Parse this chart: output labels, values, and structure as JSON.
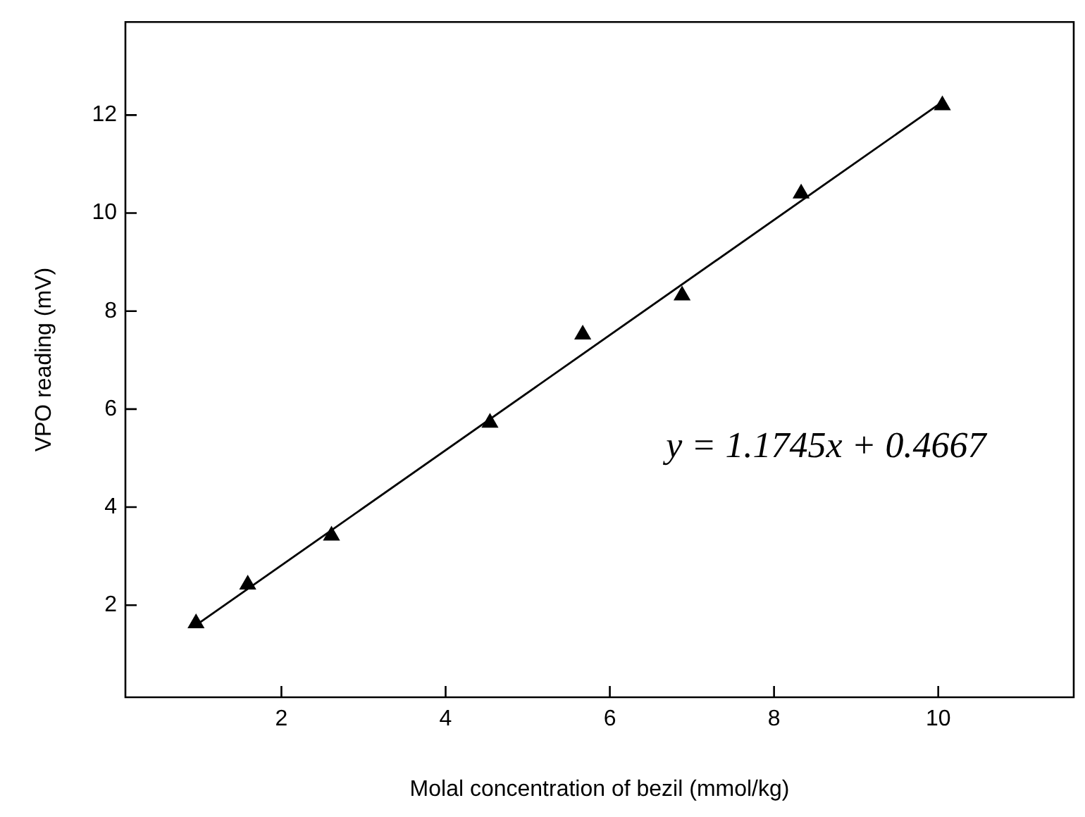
{
  "chart_data": {
    "type": "scatter",
    "xlabel": "Molal concentration of bezil (mmol/kg)",
    "ylabel": "VPO reading (mV)",
    "xlim": [
      0.1,
      11.65
    ],
    "ylim": [
      0.12,
      13.9
    ],
    "xticks": [
      2,
      4,
      6,
      8,
      10
    ],
    "yticks": [
      2,
      4,
      6,
      8,
      10,
      12
    ],
    "grid": false,
    "legend": false,
    "marker": "triangle",
    "series": [
      {
        "type": "scatter",
        "color": "#000000",
        "x": [
          0.96,
          1.59,
          2.61,
          4.54,
          5.67,
          6.88,
          8.33,
          10.05
        ],
        "values": [
          1.63,
          2.42,
          3.42,
          5.72,
          7.52,
          8.32,
          10.4,
          12.2
        ]
      },
      {
        "type": "line",
        "color": "#000000",
        "marker": "none",
        "line_style": "solid",
        "x": [
          0.96,
          10.05
        ],
        "values": [
          1.59,
          12.27
        ]
      }
    ],
    "annotations": [
      "y = 1.1745x + 0.4667"
    ]
  }
}
